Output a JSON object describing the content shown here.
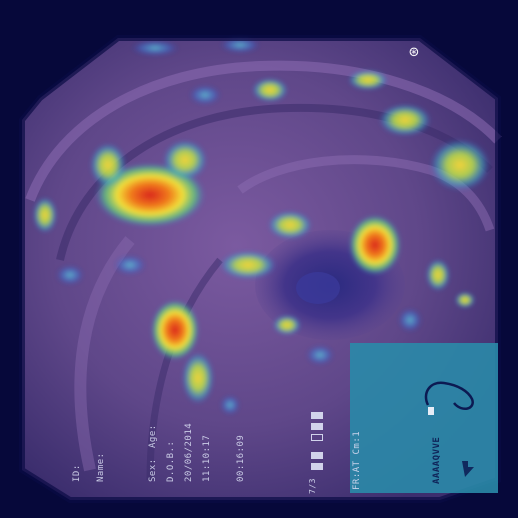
{
  "overlay": {
    "id_label": "ID:",
    "name_label": "Name:",
    "sex_label": "Sex:",
    "age_label": "Age:",
    "dob_label": "D.O.B.:",
    "date": "20/06/2014",
    "time": "11:10:17",
    "elapsed": "00:16:09",
    "frame_counter": "7/3",
    "mode_label": "FR:AT Cm:1",
    "inset_code": "AAAAQVVE"
  },
  "colors": {
    "background": "#06083a",
    "tissue": "#6a4f92",
    "heat_low": "#2f8bd8",
    "heat_mid": "#ffe53a",
    "heat_high": "#e8281c",
    "inset_panel": "#2a8aa8"
  },
  "icons": {
    "logo": "magnet-logo-icon",
    "inset": "scope-position-icon"
  }
}
